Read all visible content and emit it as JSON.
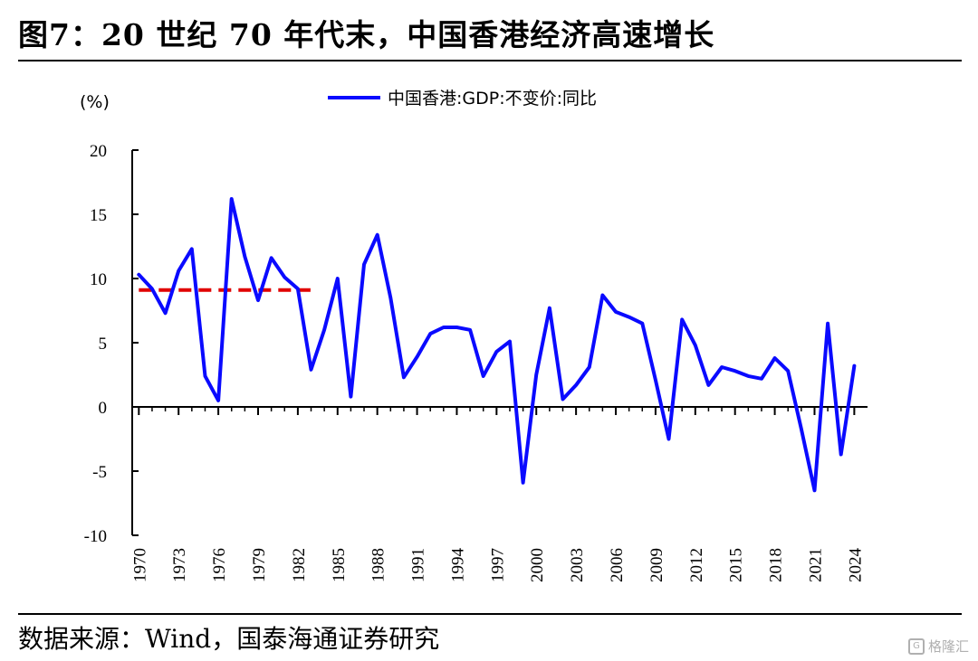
{
  "figure": {
    "title": "图7：20 世纪 70 年代末，中国香港经济高速增长",
    "source": "数据来源：Wind，国泰海通证券研究"
  },
  "watermark": {
    "icon": "g-logo-icon",
    "text": "格隆汇"
  },
  "chart_data": {
    "type": "line",
    "y_unit_label": "(%)",
    "ylim": [
      -10,
      20
    ],
    "yticks": [
      "20",
      "15",
      "10",
      "5",
      "0",
      "-5",
      "-10"
    ],
    "x_tick_labels": [
      "1970",
      "1973",
      "1976",
      "1979",
      "1982",
      "1985",
      "1988",
      "1991",
      "1994",
      "1997",
      "2000",
      "2003",
      "2006",
      "2009",
      "2012",
      "2015",
      "2018",
      "2021",
      "2024"
    ],
    "legend": {
      "label": "中国香港:GDP:不变价:同比",
      "placement": "top-center"
    },
    "grid": false,
    "series": [
      {
        "name": "中国香港:GDP:不变价:同比",
        "color": "#0a0aff",
        "x": [
          1970,
          1971,
          1972,
          1973,
          1974,
          1975,
          1976,
          1977,
          1978,
          1979,
          1980,
          1981,
          1982,
          1983,
          1984,
          1985,
          1986,
          1987,
          1988,
          1989,
          1990,
          1991,
          1992,
          1993,
          1994,
          1995,
          1996,
          1997,
          1998,
          1999,
          2000,
          2001,
          2002,
          2003,
          2004,
          2005,
          2006,
          2007,
          2008,
          2009,
          2010,
          2011,
          2012,
          2013,
          2014,
          2015,
          2016,
          2017,
          2018,
          2019,
          2020,
          2021,
          2022,
          2023,
          2024
        ],
        "values": [
          10.3,
          9.2,
          7.3,
          10.6,
          12.3,
          2.4,
          0.5,
          16.2,
          11.7,
          8.3,
          11.6,
          10.1,
          9.2,
          2.9,
          6.0,
          10.0,
          0.8,
          11.1,
          13.4,
          8.5,
          2.3,
          3.9,
          5.7,
          6.2,
          6.2,
          6.0,
          2.4,
          4.3,
          5.1,
          -5.9,
          2.5,
          7.7,
          0.6,
          1.7,
          3.1,
          8.7,
          7.4,
          7.0,
          6.5,
          2.1,
          -2.5,
          6.8,
          4.8,
          1.7,
          3.1,
          2.8,
          2.4,
          2.2,
          3.8,
          2.8,
          -1.7,
          -6.5,
          6.5,
          -3.7,
          3.2
        ]
      }
    ],
    "reference_line": {
      "y": 9.1,
      "x_start": 1970,
      "x_end": 1982,
      "color": "#e00000",
      "style": "dashed"
    }
  }
}
